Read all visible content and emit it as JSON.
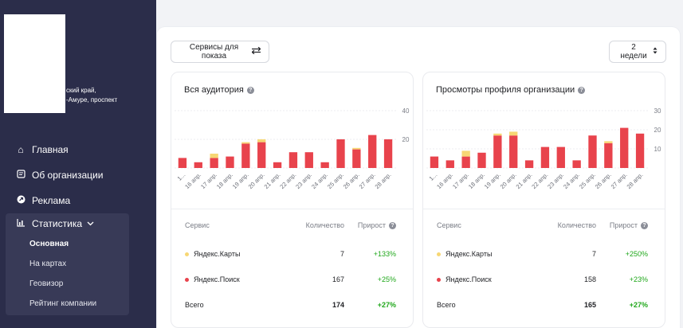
{
  "sidebar": {
    "address_lines": [
      "ский край,",
      "-Амуре, проспект"
    ],
    "nav": [
      {
        "label": "Главная",
        "icon": "home-icon"
      },
      {
        "label": "Об организации",
        "icon": "document-icon"
      },
      {
        "label": "Реклама",
        "icon": "ad-icon"
      }
    ],
    "stats": {
      "label": "Статистика",
      "icon": "chart-icon",
      "items": [
        "Основная",
        "На картах",
        "Геовизор",
        "Рейтинг компании"
      ],
      "active": "Основная"
    }
  },
  "toolbar": {
    "services_label": "Сервисы для показа",
    "period_label": "2 недели"
  },
  "colors": {
    "search": "#e8434c",
    "maps": "#f7d774",
    "accent_green": "#1fa71a",
    "sidebar_bg": "#2b2d4a"
  },
  "x_labels": [
    "16 апр.",
    "17 апр.",
    "18 апр.",
    "19 апр.",
    "20 апр.",
    "21 апр.",
    "22 апр.",
    "23 апр.",
    "24 апр.",
    "25 апр.",
    "26 апр.",
    "27 апр.",
    "28 апр."
  ],
  "audience": {
    "title": "Вся аудитория",
    "table_headers": {
      "service": "Сервис",
      "count": "Количество",
      "growth": "Прирост"
    },
    "rows": [
      {
        "service": "Яндекс.Карты",
        "count": "7",
        "growth": "+133%",
        "color": "#f7d774"
      },
      {
        "service": "Яндекс.Поиск",
        "count": "167",
        "growth": "+25%",
        "color": "#e8434c"
      }
    ],
    "total": {
      "label": "Всего",
      "count": "174",
      "growth": "+27%"
    }
  },
  "views": {
    "title": "Просмотры профиля организации",
    "table_headers": {
      "service": "Сервис",
      "count": "Количество",
      "growth": "Прирост"
    },
    "rows": [
      {
        "service": "Яндекс.Карты",
        "count": "7",
        "growth": "+250%",
        "color": "#f7d774"
      },
      {
        "service": "Яндекс.Поиск",
        "count": "158",
        "growth": "+23%",
        "color": "#e8434c"
      }
    ],
    "total": {
      "label": "Всего",
      "count": "165",
      "growth": "+27%"
    }
  },
  "chart_data": [
    {
      "type": "bar",
      "title": "Вся аудитория",
      "categories": [
        "",
        "16 апр.",
        "17 апр.",
        "18 апр.",
        "19 апр.",
        "20 апр.",
        "21 апр.",
        "22 апр.",
        "23 апр.",
        "24 апр.",
        "25 апр.",
        "26 апр.",
        "27 апр.",
        "28 апр."
      ],
      "y_ticks": [
        20,
        40
      ],
      "ylim": [
        0,
        40
      ],
      "grid": true,
      "series": [
        {
          "values": [
            7,
            4,
            7,
            8,
            17,
            18,
            4,
            11,
            11,
            4,
            20,
            13,
            23,
            20
          ]
        },
        {
          "values": [
            0,
            0,
            3,
            0,
            1,
            2,
            0,
            0,
            0,
            0,
            0,
            1,
            0,
            0
          ]
        }
      ]
    },
    {
      "type": "bar",
      "title": "Просмотры профиля организации",
      "categories": [
        "",
        "16 апр.",
        "17 апр.",
        "18 апр.",
        "19 апр.",
        "20 апр.",
        "21 апр.",
        "22 апр.",
        "23 апр.",
        "24 апр.",
        "25 апр.",
        "26 апр.",
        "27 апр.",
        "28 апр."
      ],
      "y_ticks": [
        10,
        20,
        30
      ],
      "ylim": [
        0,
        30
      ],
      "grid": true,
      "series": [
        {
          "values": [
            6,
            4,
            6,
            8,
            17,
            17,
            4,
            11,
            11,
            4,
            17,
            13,
            21,
            18
          ]
        },
        {
          "values": [
            0,
            0,
            3,
            0,
            1,
            2,
            0,
            0,
            0,
            0,
            0,
            1,
            0,
            0
          ]
        }
      ]
    }
  ]
}
